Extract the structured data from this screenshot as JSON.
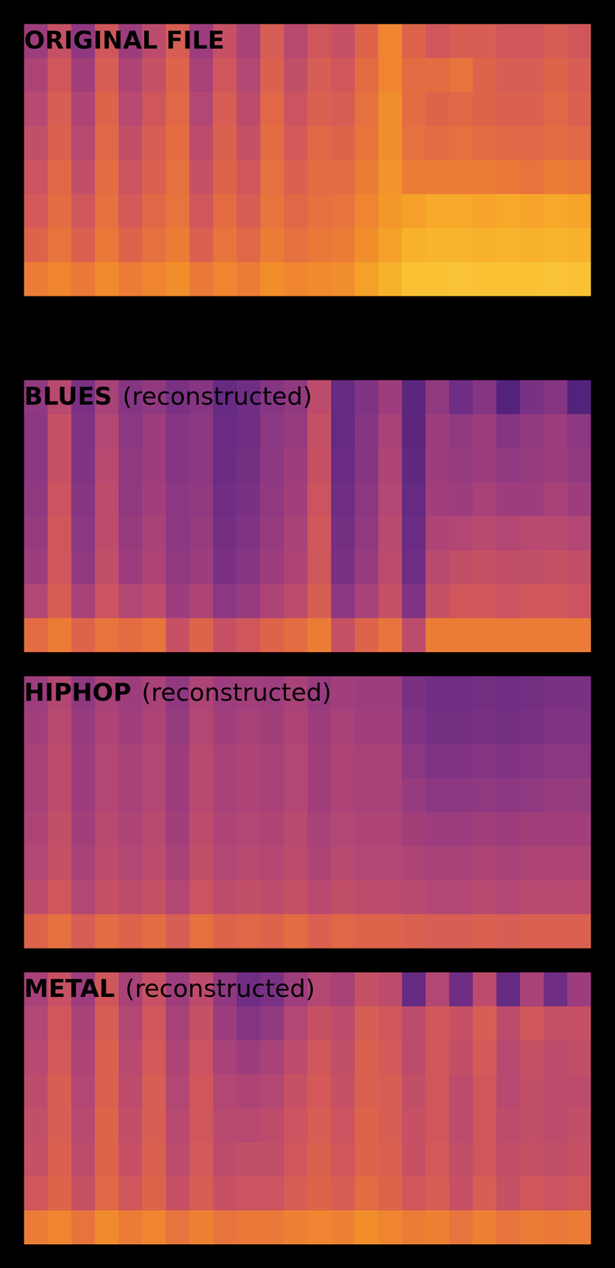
{
  "chart_data": [
    {
      "type": "heatmap",
      "title": "ORIGINAL FILE",
      "tick_labels": false,
      "zlim": [
        0.3,
        0.9
      ],
      "z": [
        [
          0.5,
          0.58,
          0.48,
          0.6,
          0.5,
          0.56,
          0.62,
          0.5,
          0.58,
          0.52,
          0.62,
          0.55,
          0.6,
          0.58,
          0.64,
          0.72,
          0.64,
          0.6,
          0.62,
          0.62,
          0.6,
          0.6,
          0.62,
          0.6
        ],
        [
          0.53,
          0.6,
          0.51,
          0.62,
          0.53,
          0.58,
          0.64,
          0.52,
          0.6,
          0.54,
          0.63,
          0.57,
          0.62,
          0.6,
          0.66,
          0.72,
          0.66,
          0.66,
          0.68,
          0.64,
          0.62,
          0.62,
          0.64,
          0.62
        ],
        [
          0.55,
          0.62,
          0.53,
          0.64,
          0.55,
          0.6,
          0.65,
          0.54,
          0.62,
          0.56,
          0.65,
          0.59,
          0.63,
          0.62,
          0.67,
          0.74,
          0.66,
          0.64,
          0.65,
          0.64,
          0.63,
          0.63,
          0.65,
          0.63
        ],
        [
          0.57,
          0.63,
          0.55,
          0.65,
          0.57,
          0.62,
          0.66,
          0.56,
          0.63,
          0.58,
          0.66,
          0.61,
          0.65,
          0.64,
          0.68,
          0.74,
          0.67,
          0.66,
          0.67,
          0.66,
          0.65,
          0.65,
          0.66,
          0.65
        ],
        [
          0.59,
          0.65,
          0.57,
          0.66,
          0.59,
          0.63,
          0.67,
          0.58,
          0.64,
          0.6,
          0.67,
          0.63,
          0.66,
          0.66,
          0.7,
          0.75,
          0.7,
          0.7,
          0.7,
          0.7,
          0.69,
          0.68,
          0.7,
          0.69
        ],
        [
          0.61,
          0.66,
          0.6,
          0.67,
          0.61,
          0.65,
          0.68,
          0.6,
          0.66,
          0.62,
          0.68,
          0.65,
          0.67,
          0.68,
          0.72,
          0.76,
          0.78,
          0.8,
          0.8,
          0.79,
          0.8,
          0.79,
          0.8,
          0.79
        ],
        [
          0.64,
          0.68,
          0.63,
          0.69,
          0.64,
          0.67,
          0.7,
          0.63,
          0.68,
          0.65,
          0.7,
          0.67,
          0.69,
          0.7,
          0.74,
          0.78,
          0.82,
          0.83,
          0.83,
          0.82,
          0.83,
          0.82,
          0.83,
          0.82
        ],
        [
          0.7,
          0.72,
          0.69,
          0.73,
          0.7,
          0.72,
          0.74,
          0.69,
          0.72,
          0.7,
          0.74,
          0.72,
          0.73,
          0.74,
          0.78,
          0.82,
          0.86,
          0.86,
          0.87,
          0.86,
          0.86,
          0.86,
          0.87,
          0.86
        ]
      ]
    },
    {
      "type": "heatmap",
      "title": "BLUES",
      "subtitle": "(reconstructed)",
      "tick_labels": false,
      "zlim": [
        0.3,
        0.9
      ],
      "z": [
        [
          0.48,
          0.55,
          0.44,
          0.52,
          0.46,
          0.48,
          0.44,
          0.46,
          0.4,
          0.42,
          0.46,
          0.48,
          0.56,
          0.4,
          0.45,
          0.5,
          0.38,
          0.48,
          0.42,
          0.46,
          0.36,
          0.44,
          0.46,
          0.36
        ],
        [
          0.47,
          0.58,
          0.45,
          0.54,
          0.47,
          0.5,
          0.46,
          0.47,
          0.41,
          0.42,
          0.47,
          0.49,
          0.58,
          0.4,
          0.46,
          0.52,
          0.38,
          0.5,
          0.48,
          0.5,
          0.46,
          0.48,
          0.5,
          0.47
        ],
        [
          0.47,
          0.58,
          0.45,
          0.55,
          0.48,
          0.5,
          0.46,
          0.47,
          0.41,
          0.43,
          0.47,
          0.5,
          0.58,
          0.41,
          0.46,
          0.53,
          0.39,
          0.5,
          0.49,
          0.5,
          0.48,
          0.49,
          0.5,
          0.48
        ],
        [
          0.48,
          0.59,
          0.46,
          0.56,
          0.48,
          0.51,
          0.47,
          0.48,
          0.42,
          0.44,
          0.48,
          0.51,
          0.59,
          0.42,
          0.47,
          0.54,
          0.4,
          0.51,
          0.5,
          0.52,
          0.5,
          0.5,
          0.52,
          0.5
        ],
        [
          0.49,
          0.6,
          0.47,
          0.56,
          0.49,
          0.52,
          0.47,
          0.49,
          0.43,
          0.45,
          0.49,
          0.52,
          0.6,
          0.43,
          0.48,
          0.55,
          0.41,
          0.53,
          0.54,
          0.55,
          0.54,
          0.55,
          0.55,
          0.54
        ],
        [
          0.5,
          0.6,
          0.48,
          0.57,
          0.5,
          0.53,
          0.48,
          0.5,
          0.44,
          0.46,
          0.5,
          0.53,
          0.6,
          0.44,
          0.49,
          0.56,
          0.42,
          0.55,
          0.57,
          0.58,
          0.57,
          0.57,
          0.58,
          0.57
        ],
        [
          0.54,
          0.62,
          0.52,
          0.59,
          0.54,
          0.56,
          0.5,
          0.53,
          0.47,
          0.49,
          0.53,
          0.56,
          0.62,
          0.47,
          0.52,
          0.58,
          0.45,
          0.58,
          0.6,
          0.6,
          0.59,
          0.6,
          0.6,
          0.59
        ],
        [
          0.66,
          0.7,
          0.64,
          0.68,
          0.66,
          0.68,
          0.58,
          0.64,
          0.58,
          0.6,
          0.64,
          0.66,
          0.7,
          0.58,
          0.64,
          0.68,
          0.56,
          0.7,
          0.7,
          0.7,
          0.7,
          0.7,
          0.7,
          0.7
        ]
      ]
    },
    {
      "type": "heatmap",
      "title": "HIPHOP",
      "subtitle": "(reconstructed)",
      "tick_labels": false,
      "zlim": [
        0.3,
        0.9
      ],
      "z": [
        [
          0.5,
          0.54,
          0.48,
          0.52,
          0.5,
          0.52,
          0.48,
          0.53,
          0.5,
          0.51,
          0.5,
          0.52,
          0.49,
          0.51,
          0.5,
          0.5,
          0.44,
          0.42,
          0.42,
          0.43,
          0.42,
          0.43,
          0.44,
          0.44
        ],
        [
          0.51,
          0.55,
          0.49,
          0.53,
          0.51,
          0.53,
          0.49,
          0.54,
          0.51,
          0.52,
          0.51,
          0.53,
          0.5,
          0.52,
          0.51,
          0.51,
          0.45,
          0.43,
          0.43,
          0.44,
          0.43,
          0.44,
          0.45,
          0.45
        ],
        [
          0.52,
          0.56,
          0.5,
          0.54,
          0.52,
          0.54,
          0.5,
          0.55,
          0.52,
          0.53,
          0.52,
          0.54,
          0.51,
          0.53,
          0.52,
          0.52,
          0.47,
          0.45,
          0.45,
          0.46,
          0.45,
          0.46,
          0.47,
          0.47
        ],
        [
          0.52,
          0.56,
          0.5,
          0.54,
          0.52,
          0.54,
          0.5,
          0.55,
          0.52,
          0.53,
          0.52,
          0.54,
          0.51,
          0.53,
          0.52,
          0.52,
          0.49,
          0.47,
          0.47,
          0.48,
          0.47,
          0.48,
          0.49,
          0.49
        ],
        [
          0.53,
          0.57,
          0.51,
          0.55,
          0.53,
          0.55,
          0.51,
          0.56,
          0.53,
          0.54,
          0.53,
          0.55,
          0.52,
          0.54,
          0.53,
          0.53,
          0.51,
          0.5,
          0.5,
          0.51,
          0.5,
          0.51,
          0.51,
          0.51
        ],
        [
          0.54,
          0.58,
          0.52,
          0.56,
          0.54,
          0.56,
          0.52,
          0.57,
          0.54,
          0.55,
          0.54,
          0.56,
          0.53,
          0.55,
          0.54,
          0.54,
          0.53,
          0.52,
          0.52,
          0.53,
          0.52,
          0.53,
          0.53,
          0.53
        ],
        [
          0.56,
          0.6,
          0.54,
          0.58,
          0.56,
          0.58,
          0.54,
          0.59,
          0.56,
          0.57,
          0.56,
          0.58,
          0.55,
          0.57,
          0.56,
          0.56,
          0.55,
          0.54,
          0.54,
          0.55,
          0.54,
          0.55,
          0.55,
          0.55
        ],
        [
          0.64,
          0.67,
          0.62,
          0.66,
          0.64,
          0.66,
          0.62,
          0.67,
          0.64,
          0.65,
          0.64,
          0.66,
          0.63,
          0.65,
          0.64,
          0.64,
          0.63,
          0.62,
          0.62,
          0.63,
          0.62,
          0.63,
          0.63,
          0.63
        ]
      ]
    },
    {
      "type": "heatmap",
      "title": "METAL",
      "subtitle": "(reconstructed)",
      "tick_labels": false,
      "zlim": [
        0.3,
        0.9
      ],
      "z": [
        [
          0.52,
          0.58,
          0.5,
          0.6,
          0.52,
          0.58,
          0.5,
          0.56,
          0.48,
          0.42,
          0.44,
          0.5,
          0.54,
          0.52,
          0.58,
          0.56,
          0.4,
          0.54,
          0.42,
          0.56,
          0.4,
          0.52,
          0.42,
          0.5
        ],
        [
          0.54,
          0.6,
          0.52,
          0.62,
          0.54,
          0.6,
          0.52,
          0.58,
          0.5,
          0.46,
          0.48,
          0.54,
          0.58,
          0.56,
          0.62,
          0.6,
          0.56,
          0.6,
          0.58,
          0.62,
          0.56,
          0.6,
          0.58,
          0.58
        ],
        [
          0.55,
          0.61,
          0.53,
          0.63,
          0.55,
          0.61,
          0.53,
          0.59,
          0.52,
          0.5,
          0.52,
          0.56,
          0.6,
          0.57,
          0.63,
          0.61,
          0.56,
          0.6,
          0.57,
          0.61,
          0.55,
          0.58,
          0.56,
          0.57
        ],
        [
          0.56,
          0.62,
          0.54,
          0.63,
          0.56,
          0.62,
          0.54,
          0.6,
          0.54,
          0.53,
          0.54,
          0.58,
          0.61,
          0.58,
          0.63,
          0.62,
          0.57,
          0.6,
          0.56,
          0.6,
          0.55,
          0.57,
          0.56,
          0.56
        ],
        [
          0.57,
          0.62,
          0.55,
          0.64,
          0.57,
          0.62,
          0.55,
          0.6,
          0.55,
          0.55,
          0.56,
          0.59,
          0.62,
          0.59,
          0.64,
          0.62,
          0.58,
          0.6,
          0.56,
          0.6,
          0.56,
          0.57,
          0.56,
          0.57
        ],
        [
          0.58,
          0.63,
          0.56,
          0.64,
          0.58,
          0.63,
          0.56,
          0.61,
          0.56,
          0.57,
          0.57,
          0.6,
          0.63,
          0.6,
          0.64,
          0.63,
          0.58,
          0.61,
          0.57,
          0.6,
          0.57,
          0.58,
          0.57,
          0.58
        ],
        [
          0.6,
          0.64,
          0.58,
          0.65,
          0.6,
          0.64,
          0.58,
          0.62,
          0.58,
          0.59,
          0.59,
          0.62,
          0.64,
          0.62,
          0.66,
          0.64,
          0.6,
          0.62,
          0.58,
          0.62,
          0.58,
          0.6,
          0.59,
          0.6
        ],
        [
          0.7,
          0.72,
          0.68,
          0.73,
          0.7,
          0.72,
          0.68,
          0.71,
          0.68,
          0.69,
          0.69,
          0.71,
          0.72,
          0.71,
          0.74,
          0.72,
          0.7,
          0.71,
          0.68,
          0.71,
          0.68,
          0.7,
          0.69,
          0.7
        ]
      ]
    }
  ]
}
